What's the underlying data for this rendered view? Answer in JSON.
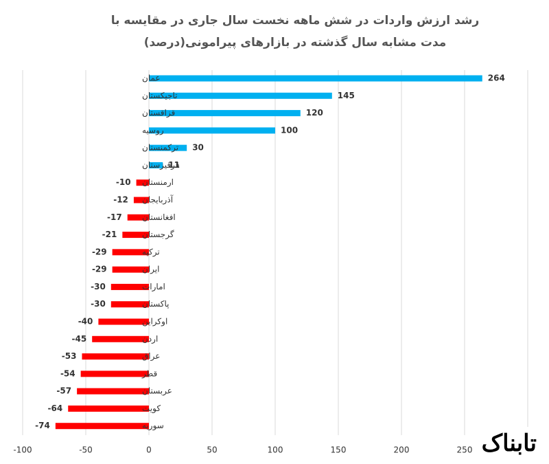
{
  "chart_data": {
    "type": "barh",
    "title": "رشد ارزش واردات در شش ماهه نخست سال جاری در مقایسه با مدت مشابه سال گذشته در بازارهای پیرامونی(درصد)",
    "categories": [
      "عمان",
      "تاجیکستان",
      "قزاقستان",
      "روسیه",
      "ترکمنستان",
      "قرقیزستان",
      "ارمنستان",
      "آذربایجان",
      "افغانستان",
      "گرجستان",
      "ترکیه",
      "ایران",
      "امارات",
      "پاکستان",
      "اوکراین",
      "اردن",
      "عراق",
      "قطر",
      "عربستان",
      "کویت",
      "سوریه"
    ],
    "values": [
      264,
      145,
      120,
      100,
      30,
      11,
      -10,
      -12,
      -17,
      -21,
      -29,
      -29,
      -30,
      -30,
      -40,
      -45,
      -53,
      -54,
      -57,
      -64,
      -74
    ],
    "positive_color": "#00b0f0",
    "negative_color": "#ff0000",
    "xlim": [
      -100,
      300
    ],
    "xticks": [
      -100,
      -50,
      0,
      50,
      100,
      150,
      200,
      250
    ],
    "grid": true,
    "watermark": "تابناک"
  }
}
